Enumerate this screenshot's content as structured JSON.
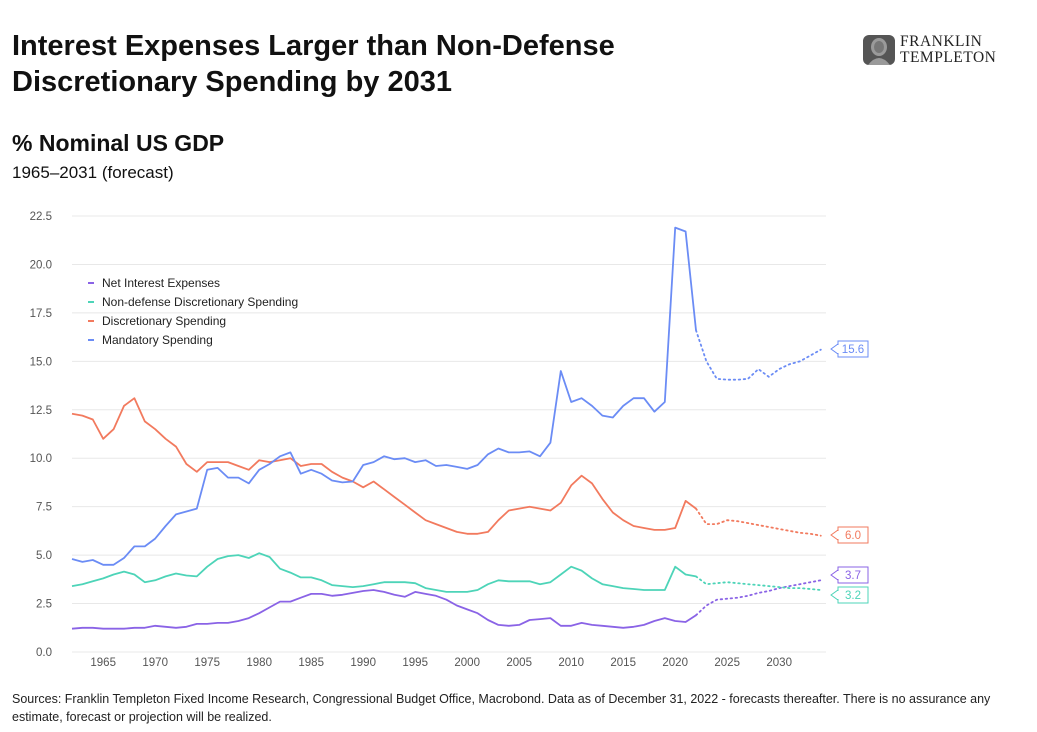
{
  "header": {
    "title": "Interest Expenses Larger than Non-Defense Discretionary Spending by 2031",
    "logo_line1": "FRANKLIN",
    "logo_line2": "TEMPLETON"
  },
  "chart_data": {
    "type": "line",
    "title": "% Nominal US GDP",
    "subtitle": "1965–2031 (forecast)",
    "xlabel": "",
    "ylabel": "",
    "xlim": [
      1962,
      2034.5
    ],
    "ylim": [
      0,
      22.5
    ],
    "x_ticks": [
      1965,
      1970,
      1975,
      1980,
      1985,
      1990,
      1995,
      2000,
      2005,
      2010,
      2015,
      2020,
      2025,
      2030
    ],
    "y_ticks": [
      0.0,
      2.5,
      5.0,
      7.5,
      10.0,
      12.5,
      15.0,
      17.5,
      20.0,
      22.5
    ],
    "grid": "horizontal",
    "legend_position": "top-left",
    "forecast_start": 2022,
    "series": [
      {
        "name": "Net Interest Expenses",
        "color": "#8a63e6",
        "x": [
          1962,
          1963,
          1964,
          1965,
          1966,
          1967,
          1968,
          1969,
          1970,
          1971,
          1972,
          1973,
          1974,
          1975,
          1976,
          1977,
          1978,
          1979,
          1980,
          1981,
          1982,
          1983,
          1984,
          1985,
          1986,
          1987,
          1988,
          1989,
          1990,
          1991,
          1992,
          1993,
          1994,
          1995,
          1996,
          1997,
          1998,
          1999,
          2000,
          2001,
          2002,
          2003,
          2004,
          2005,
          2006,
          2007,
          2008,
          2009,
          2010,
          2011,
          2012,
          2013,
          2014,
          2015,
          2016,
          2017,
          2018,
          2019,
          2020,
          2021,
          2022,
          2023,
          2024,
          2025,
          2026,
          2027,
          2028,
          2029,
          2030,
          2031,
          2032,
          2033,
          2034
        ],
        "values": [
          1.2,
          1.25,
          1.25,
          1.2,
          1.2,
          1.2,
          1.25,
          1.25,
          1.35,
          1.3,
          1.25,
          1.3,
          1.45,
          1.45,
          1.5,
          1.5,
          1.6,
          1.75,
          2.0,
          2.3,
          2.6,
          2.6,
          2.8,
          3.0,
          3.0,
          2.9,
          2.95,
          3.05,
          3.15,
          3.2,
          3.1,
          2.95,
          2.85,
          3.1,
          3.0,
          2.9,
          2.7,
          2.4,
          2.2,
          2.0,
          1.65,
          1.4,
          1.35,
          1.4,
          1.65,
          1.7,
          1.75,
          1.35,
          1.35,
          1.5,
          1.4,
          1.35,
          1.3,
          1.25,
          1.3,
          1.4,
          1.6,
          1.75,
          1.6,
          1.55,
          1.9,
          2.4,
          2.7,
          2.75,
          2.8,
          2.9,
          3.05,
          3.15,
          3.3,
          3.4,
          3.5,
          3.6,
          3.7
        ]
      },
      {
        "name": "Non-defense Discretionary Spending",
        "color": "#4dd4b8",
        "x": [
          1962,
          1963,
          1964,
          1965,
          1966,
          1967,
          1968,
          1969,
          1970,
          1971,
          1972,
          1973,
          1974,
          1975,
          1976,
          1977,
          1978,
          1979,
          1980,
          1981,
          1982,
          1983,
          1984,
          1985,
          1986,
          1987,
          1988,
          1989,
          1990,
          1991,
          1992,
          1993,
          1994,
          1995,
          1996,
          1997,
          1998,
          1999,
          2000,
          2001,
          2002,
          2003,
          2004,
          2005,
          2006,
          2007,
          2008,
          2009,
          2010,
          2011,
          2012,
          2013,
          2014,
          2015,
          2016,
          2017,
          2018,
          2019,
          2020,
          2021,
          2022,
          2023,
          2024,
          2025,
          2026,
          2027,
          2028,
          2029,
          2030,
          2031,
          2032,
          2033,
          2034
        ],
        "values": [
          3.4,
          3.5,
          3.65,
          3.8,
          4.0,
          4.15,
          4.0,
          3.6,
          3.7,
          3.9,
          4.05,
          3.95,
          3.9,
          4.4,
          4.8,
          4.95,
          5.0,
          4.85,
          5.1,
          4.9,
          4.3,
          4.1,
          3.85,
          3.85,
          3.7,
          3.45,
          3.4,
          3.35,
          3.4,
          3.5,
          3.6,
          3.6,
          3.6,
          3.55,
          3.3,
          3.2,
          3.1,
          3.1,
          3.1,
          3.2,
          3.5,
          3.7,
          3.65,
          3.65,
          3.65,
          3.5,
          3.6,
          4.0,
          4.4,
          4.2,
          3.8,
          3.5,
          3.4,
          3.3,
          3.25,
          3.2,
          3.2,
          3.2,
          4.4,
          4.0,
          3.9,
          3.5,
          3.55,
          3.6,
          3.55,
          3.5,
          3.45,
          3.4,
          3.35,
          3.3,
          3.3,
          3.25,
          3.2
        ]
      },
      {
        "name": "Discretionary Spending",
        "color": "#f27a5e",
        "x": [
          1962,
          1963,
          1964,
          1965,
          1966,
          1967,
          1968,
          1969,
          1970,
          1971,
          1972,
          1973,
          1974,
          1975,
          1976,
          1977,
          1978,
          1979,
          1980,
          1981,
          1982,
          1983,
          1984,
          1985,
          1986,
          1987,
          1988,
          1989,
          1990,
          1991,
          1992,
          1993,
          1994,
          1995,
          1996,
          1997,
          1998,
          1999,
          2000,
          2001,
          2002,
          2003,
          2004,
          2005,
          2006,
          2007,
          2008,
          2009,
          2010,
          2011,
          2012,
          2013,
          2014,
          2015,
          2016,
          2017,
          2018,
          2019,
          2020,
          2021,
          2022,
          2023,
          2024,
          2025,
          2026,
          2027,
          2028,
          2029,
          2030,
          2031,
          2032,
          2033,
          2034
        ],
        "values": [
          12.3,
          12.2,
          12.0,
          11.0,
          11.5,
          12.7,
          13.1,
          11.9,
          11.5,
          11.0,
          10.6,
          9.7,
          9.3,
          9.8,
          9.8,
          9.8,
          9.6,
          9.4,
          9.9,
          9.8,
          9.9,
          10.0,
          9.6,
          9.7,
          9.7,
          9.3,
          9.0,
          8.8,
          8.5,
          8.8,
          8.4,
          8.0,
          7.6,
          7.2,
          6.8,
          6.6,
          6.4,
          6.2,
          6.1,
          6.1,
          6.2,
          6.8,
          7.3,
          7.4,
          7.5,
          7.4,
          7.3,
          7.7,
          8.6,
          9.1,
          8.7,
          7.9,
          7.2,
          6.8,
          6.5,
          6.4,
          6.3,
          6.3,
          6.4,
          7.8,
          7.4,
          6.6,
          6.6,
          6.8,
          6.75,
          6.65,
          6.55,
          6.45,
          6.35,
          6.25,
          6.15,
          6.1,
          6.0
        ]
      },
      {
        "name": "Mandatory Spending",
        "color": "#6b8cf5",
        "x": [
          1962,
          1963,
          1964,
          1965,
          1966,
          1967,
          1968,
          1969,
          1970,
          1971,
          1972,
          1973,
          1974,
          1975,
          1976,
          1977,
          1978,
          1979,
          1980,
          1981,
          1982,
          1983,
          1984,
          1985,
          1986,
          1987,
          1988,
          1989,
          1990,
          1991,
          1992,
          1993,
          1994,
          1995,
          1996,
          1997,
          1998,
          1999,
          2000,
          2001,
          2002,
          2003,
          2004,
          2005,
          2006,
          2007,
          2008,
          2009,
          2010,
          2011,
          2012,
          2013,
          2014,
          2015,
          2016,
          2017,
          2018,
          2019,
          2020,
          2021,
          2022,
          2023,
          2024,
          2025,
          2026,
          2027,
          2028,
          2029,
          2030,
          2031,
          2032,
          2033,
          2034
        ],
        "values": [
          4.8,
          4.65,
          4.75,
          4.5,
          4.5,
          4.85,
          5.45,
          5.45,
          5.85,
          6.5,
          7.1,
          7.25,
          7.4,
          9.4,
          9.5,
          9.0,
          9.0,
          8.7,
          9.4,
          9.7,
          10.1,
          10.3,
          9.2,
          9.4,
          9.2,
          8.85,
          8.75,
          8.8,
          9.65,
          9.8,
          10.1,
          9.95,
          10.0,
          9.8,
          9.9,
          9.6,
          9.65,
          9.55,
          9.45,
          9.65,
          10.2,
          10.5,
          10.3,
          10.3,
          10.35,
          10.1,
          10.8,
          14.5,
          12.9,
          13.1,
          12.7,
          12.2,
          12.1,
          12.7,
          13.1,
          13.1,
          12.4,
          12.9,
          21.9,
          21.7,
          16.6,
          15.0,
          14.1,
          14.05,
          14.05,
          14.1,
          14.6,
          14.2,
          14.6,
          14.85,
          15.0,
          15.3,
          15.6
        ]
      }
    ],
    "end_labels": [
      {
        "text": "15.6",
        "value": 15.6,
        "color": "#6b8cf5"
      },
      {
        "text": "6.0",
        "value": 6.0,
        "color": "#f27a5e"
      },
      {
        "text": "3.7",
        "value": 3.7,
        "color": "#8a63e6"
      },
      {
        "text": "3.2",
        "value": 3.2,
        "color": "#4dd4b8"
      }
    ]
  },
  "footer": {
    "source": "Sources: Franklin Templeton Fixed Income Research, Congressional Budget Office, Macrobond. Data as of December 31, 2022 - forecasts thereafter. There is no assurance any estimate, forecast or projection will be realized."
  }
}
